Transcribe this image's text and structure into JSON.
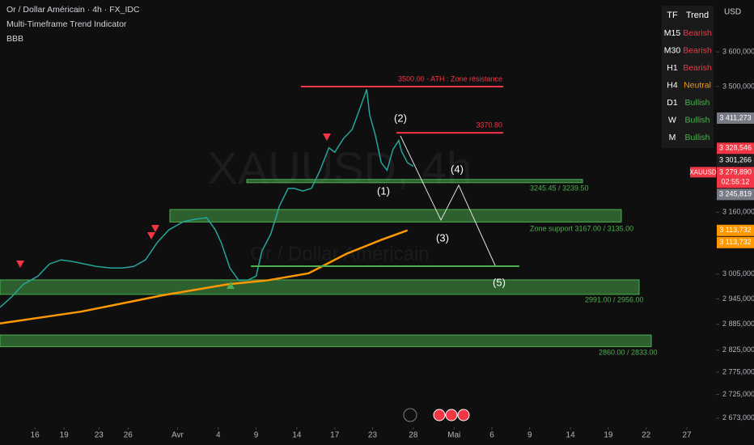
{
  "chart_data": {
    "type": "line",
    "title": "Or / Dollar Américain · 4h · FX_IDC",
    "subtitle": "Multi-Timeframe Trend Indicator",
    "indicator": "BBB",
    "currency": "USD",
    "watermark": "XAUUSD, 4h",
    "watermark_sub": "Or / Dollar Américain",
    "log_scale": true,
    "ylim": [
      2650,
      3755
    ],
    "xlim": [
      0,
      246
    ],
    "yticks": [
      {
        "value": 3600,
        "label": "3 600,000"
      },
      {
        "value": 3500,
        "label": "3 500,000"
      },
      {
        "value": 3160,
        "label": "3 160,000"
      },
      {
        "value": 3005,
        "label": "3 005,000"
      },
      {
        "value": 2945,
        "label": "2 945,000"
      },
      {
        "value": 2885,
        "label": "2 885,000"
      },
      {
        "value": 2825,
        "label": "2 825,000"
      },
      {
        "value": 2775,
        "label": "2 775,000"
      },
      {
        "value": 2725,
        "label": "2 725,000"
      },
      {
        "value": 2673,
        "label": "2 673,000"
      }
    ],
    "xticks": [
      {
        "value": 12,
        "label": "16"
      },
      {
        "value": 22,
        "label": "19"
      },
      {
        "value": 34,
        "label": "23"
      },
      {
        "value": 44,
        "label": "26"
      },
      {
        "value": 61,
        "label": "Avr"
      },
      {
        "value": 75,
        "label": "4"
      },
      {
        "value": 88,
        "label": "9"
      },
      {
        "value": 102,
        "label": "14"
      },
      {
        "value": 115,
        "label": "17"
      },
      {
        "value": 128,
        "label": "23"
      },
      {
        "value": 142,
        "label": "28"
      },
      {
        "value": 156,
        "label": "Mai"
      },
      {
        "value": 169,
        "label": "6"
      },
      {
        "value": 182,
        "label": "9"
      },
      {
        "value": 196,
        "label": "14"
      },
      {
        "value": 209,
        "label": "19"
      },
      {
        "value": 222,
        "label": "22"
      },
      {
        "value": 236,
        "label": "27"
      }
    ],
    "series": [
      {
        "name": "XAUUSD",
        "color": "#26a69a",
        "x": [
          0,
          4,
          8,
          13,
          17,
          21,
          25,
          29,
          33,
          38,
          42,
          46,
          50,
          54,
          58,
          63,
          67,
          71,
          74,
          76,
          79,
          82,
          85,
          88,
          90,
          93,
          96,
          99,
          101,
          104,
          107,
          110,
          113,
          115,
          118,
          121,
          124,
          126,
          127,
          129,
          131,
          133,
          135,
          137,
          138,
          140,
          142
        ],
        "values": [
          2925,
          2950,
          2980,
          3000,
          3030,
          3040,
          3036,
          3030,
          3024,
          3020,
          3020,
          3024,
          3040,
          3083,
          3115,
          3136,
          3142,
          3146,
          3115,
          3083,
          3020,
          2990,
          2990,
          3000,
          3062,
          3104,
          3176,
          3222,
          3222,
          3215,
          3222,
          3270,
          3330,
          3318,
          3355,
          3380,
          3446,
          3492,
          3421,
          3363,
          3290,
          3270,
          3325,
          3350,
          3320,
          3290,
          3280
        ]
      },
      {
        "name": "MA",
        "color": "#ff9800",
        "x": [
          0,
          28,
          56,
          78,
          92,
          106,
          119,
          131,
          140
        ],
        "values": [
          2887,
          2915,
          2954,
          2980,
          2990,
          3007,
          3055,
          3090,
          3114
        ]
      }
    ],
    "levels": [
      {
        "label": "3500.00 - ATH : Zone résistance",
        "value": 3500,
        "color": "#f23645"
      },
      {
        "label": "3370.80",
        "value": 3370.8,
        "color": "#f23645"
      }
    ],
    "zones": [
      {
        "label": "3245.45 / 3239.50",
        "range": [
          3239.5,
          3245.45
        ]
      },
      {
        "label": "Zone support 3167.00 / 3135.00",
        "range": [
          3135,
          3167
        ]
      },
      {
        "label": "2991.00 / 2956.00",
        "range": [
          2956,
          2991
        ]
      },
      {
        "label": "2860.00 / 2833.00",
        "range": [
          2833,
          2860
        ]
      }
    ],
    "waves": [
      "(1)",
      "(2)",
      "(3)",
      "(4)",
      "(5)"
    ],
    "price_badges": [
      {
        "value": 3411.273,
        "label": "3 411,273",
        "color": "#787b86"
      },
      {
        "value": 3328.546,
        "label": "3 328,546",
        "color": "#f23645"
      },
      {
        "value": 3301.266,
        "label": "3 301,266",
        "color": "#1e1e1e"
      },
      {
        "value": 3245.819,
        "label": "3 245,819",
        "color": "#787b86"
      },
      {
        "value": 3113.732,
        "label": "3 113,732",
        "color": "#ff9800"
      },
      {
        "value": 3113.732,
        "label": "3 113,732",
        "color": "#ff9800"
      }
    ],
    "current": {
      "symbol": "XAUUSD",
      "value": 3279.89,
      "label": "3 279,890",
      "countdown": "02:55:12",
      "color": "#f23645"
    }
  },
  "trend_table": {
    "header": [
      "TF",
      "Trend"
    ],
    "rows": [
      [
        "M15",
        "Bearish"
      ],
      [
        "M30",
        "Bearish"
      ],
      [
        "H1",
        "Bearish"
      ],
      [
        "H4",
        "Neutral"
      ],
      [
        "D1",
        "Bullish"
      ],
      [
        "W",
        "Bullish"
      ],
      [
        "M",
        "Bullish"
      ]
    ]
  }
}
